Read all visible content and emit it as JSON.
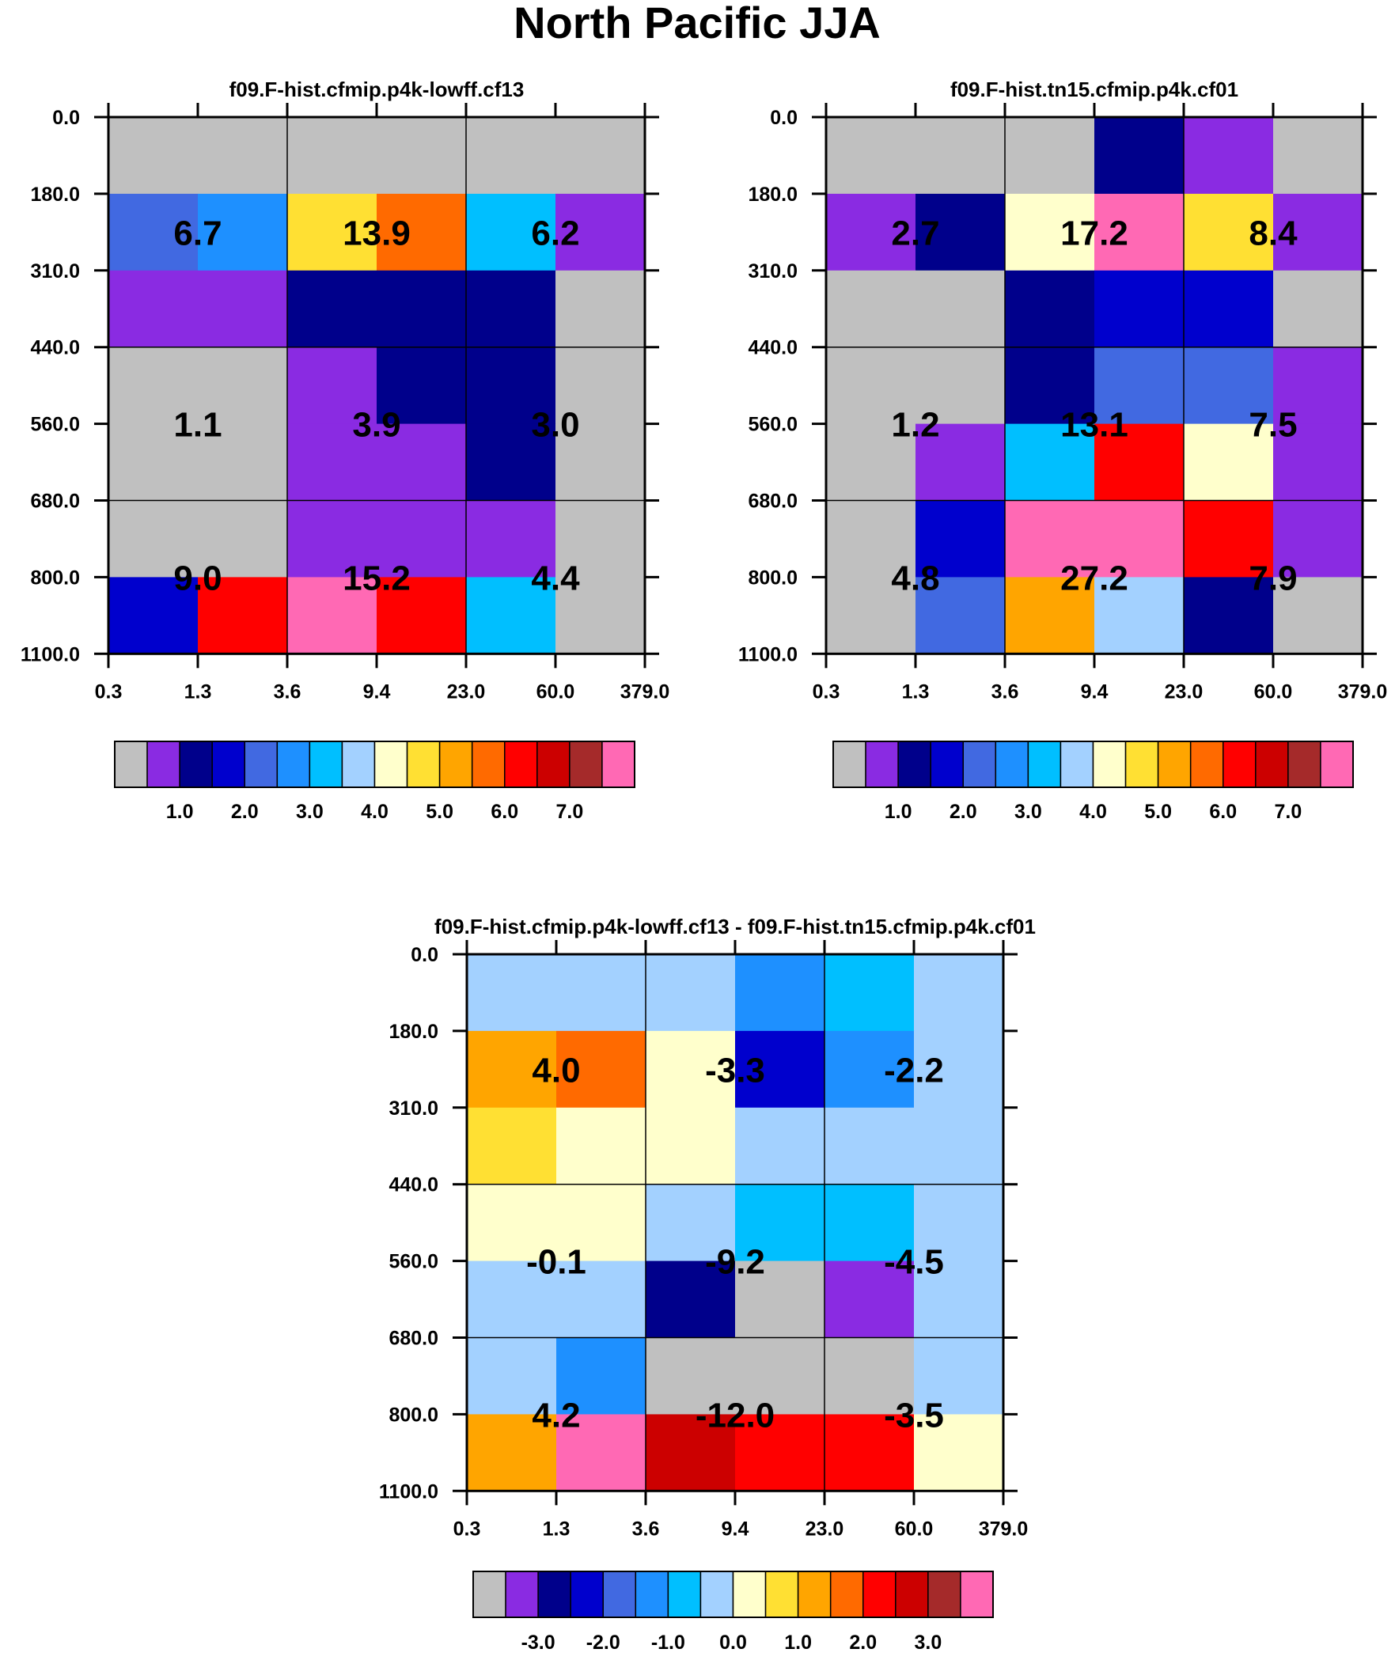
{
  "page": {
    "title": "North Pacific JJA"
  },
  "chart_data": [
    {
      "type": "heatmap",
      "title": "f09.F-hist.cfmip.p4k-lowff.cf13",
      "xticks": [
        "0.3",
        "1.3",
        "3.6",
        "9.4",
        "23.0",
        "60.0",
        "379.0"
      ],
      "yticks": [
        "0.0",
        "180.0",
        "310.0",
        "440.0",
        "560.0",
        "680.0",
        "800.0",
        "1100.0"
      ],
      "cell_colors": [
        [
          0,
          0,
          0,
          0,
          0,
          0
        ],
        [
          4,
          5,
          9,
          11,
          6,
          1
        ],
        [
          1,
          1,
          2,
          2,
          2,
          0
        ],
        [
          0,
          0,
          1,
          2,
          2,
          0
        ],
        [
          0,
          0,
          1,
          1,
          2,
          0
        ],
        [
          0,
          0,
          1,
          1,
          1,
          0
        ],
        [
          3,
          12,
          15,
          12,
          6,
          0
        ]
      ],
      "block_values": [
        [
          "6.7",
          "13.9",
          "6.2"
        ],
        [
          "1.1",
          "3.9",
          "3.0"
        ],
        [
          "9.0",
          "15.2",
          "4.4"
        ]
      ],
      "colorbar_labels": [
        "1.0",
        "2.0",
        "3.0",
        "4.0",
        "5.0",
        "6.0",
        "7.0"
      ]
    },
    {
      "type": "heatmap",
      "title": "f09.F-hist.tn15.cfmip.p4k.cf01",
      "xticks": [
        "0.3",
        "1.3",
        "3.6",
        "9.4",
        "23.0",
        "60.0",
        "379.0"
      ],
      "yticks": [
        "0.0",
        "180.0",
        "310.0",
        "440.0",
        "560.0",
        "680.0",
        "800.0",
        "1100.0"
      ],
      "cell_colors": [
        [
          0,
          0,
          0,
          2,
          1,
          0
        ],
        [
          1,
          2,
          8,
          15,
          9,
          1
        ],
        [
          0,
          0,
          2,
          3,
          3,
          0
        ],
        [
          0,
          0,
          2,
          4,
          4,
          1
        ],
        [
          0,
          1,
          6,
          12,
          8,
          1
        ],
        [
          0,
          3,
          15,
          15,
          12,
          1
        ],
        [
          0,
          4,
          10,
          7,
          2,
          0
        ]
      ],
      "block_values": [
        [
          "2.7",
          "17.2",
          "8.4"
        ],
        [
          "1.2",
          "13.1",
          "7.5"
        ],
        [
          "4.8",
          "27.2",
          "7.9"
        ]
      ],
      "colorbar_labels": [
        "1.0",
        "2.0",
        "3.0",
        "4.0",
        "5.0",
        "6.0",
        "7.0"
      ]
    },
    {
      "type": "heatmap",
      "title": "f09.F-hist.cfmip.p4k-lowff.cf13 - f09.F-hist.tn15.cfmip.p4k.cf01",
      "xticks": [
        "0.3",
        "1.3",
        "3.6",
        "9.4",
        "23.0",
        "60.0",
        "379.0"
      ],
      "yticks": [
        "0.0",
        "180.0",
        "310.0",
        "440.0",
        "560.0",
        "680.0",
        "800.0",
        "1100.0"
      ],
      "cell_colors": [
        [
          7,
          7,
          7,
          5,
          6,
          7
        ],
        [
          10,
          11,
          8,
          3,
          5,
          7
        ],
        [
          9,
          8,
          8,
          7,
          7,
          7
        ],
        [
          8,
          8,
          7,
          6,
          6,
          7
        ],
        [
          7,
          7,
          2,
          0,
          1,
          7
        ],
        [
          7,
          5,
          0,
          0,
          0,
          7
        ],
        [
          10,
          15,
          13,
          12,
          12,
          8
        ]
      ],
      "block_values": [
        [
          "4.0",
          "-3.3",
          "-2.2"
        ],
        [
          "-0.1",
          "-9.2",
          "-4.5"
        ],
        [
          "4.2",
          "-12.0",
          "-3.5"
        ]
      ],
      "colorbar_labels": [
        "-3.0",
        "-2.0",
        "-1.0",
        "0.0",
        "1.0",
        "2.0",
        "3.0"
      ]
    }
  ],
  "palette": [
    "#c0c0c0",
    "#8a2be2",
    "#00008b",
    "#0000cd",
    "#4169e1",
    "#1e90ff",
    "#00bfff",
    "#a3d1ff",
    "#ffffcc",
    "#ffe033",
    "#ffa500",
    "#ff6a00",
    "#ff0000",
    "#cc0000",
    "#a52a2a",
    "#ff69b4"
  ]
}
